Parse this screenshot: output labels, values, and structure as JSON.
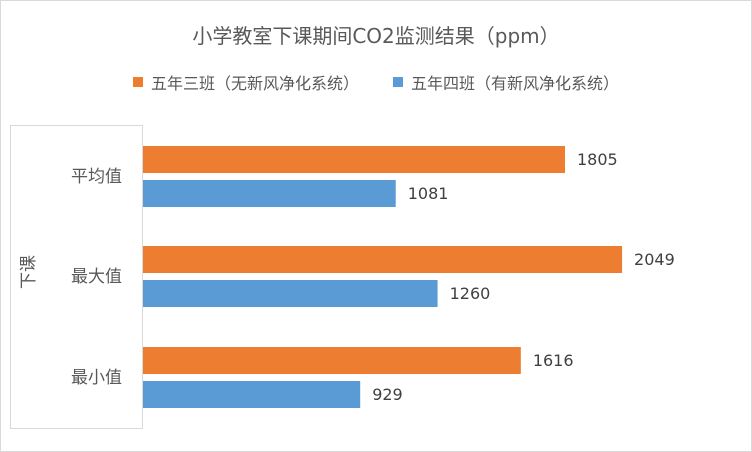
{
  "chart_data": {
    "type": "bar",
    "orientation": "horizontal",
    "title": "小学教室下课期间CO2监测结果（ppm）",
    "group_label": "下课",
    "categories": [
      "平均值",
      "最大值",
      "最小值"
    ],
    "series": [
      {
        "name": "五年三班（无新风净化系统）",
        "color": "#ED7D31",
        "values": [
          1805,
          2049,
          1616
        ]
      },
      {
        "name": "五年四班（有新风净化系统）",
        "color": "#5B9BD5",
        "values": [
          1081,
          1260,
          929
        ]
      }
    ],
    "legend_position": "top",
    "grid": false,
    "data_labels": true
  }
}
